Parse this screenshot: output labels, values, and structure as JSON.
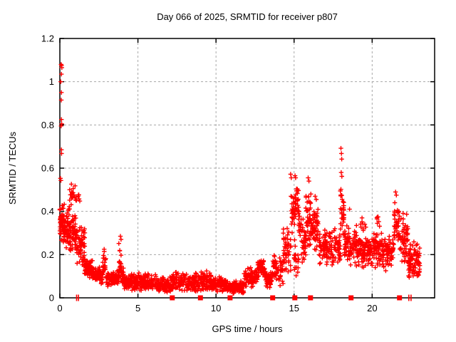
{
  "title": "Day 066 of 2025, SRMTID for receiver p807",
  "x_axis": {
    "label": "GPS time / hours",
    "min": 0,
    "max": 24,
    "tick_values": [
      0,
      5,
      10,
      15,
      20
    ],
    "tick_labels": [
      "0",
      "5",
      "10",
      "15",
      "20"
    ]
  },
  "y_axis": {
    "label": "SRMTID / TECUs",
    "min": 0,
    "max": 1.2,
    "tick_values": [
      0,
      0.2,
      0.4,
      0.6,
      0.8,
      1.0,
      1.2
    ],
    "tick_labels": [
      "0",
      "0.2",
      "0.4",
      "0.6",
      "0.8",
      "1",
      "1.2"
    ]
  },
  "colors": {
    "marker": "#ff0000",
    "grid": "#a8a8a8",
    "axis": "#000000",
    "background": "#ffffff",
    "text": "#000000"
  },
  "chart_data": {
    "type": "scatter",
    "marker_shape": "plus",
    "title": "Day 066 of 2025, SRMTID for receiver p807",
    "xlabel": "GPS time / hours",
    "ylabel": "SRMTID / TECUs",
    "xlim": [
      0,
      24
    ],
    "ylim": [
      0,
      1.2
    ],
    "grid": true,
    "seed": 20250660,
    "segments_format": [
      "t_start_hours",
      "t_end_hours",
      "n_points",
      "y_low_TECUs",
      "y_high_TECUs"
    ],
    "segments": [
      [
        0.0,
        0.3,
        45,
        0.24,
        0.44
      ],
      [
        0.0,
        0.15,
        10,
        0.3,
        0.42
      ],
      [
        0.25,
        0.65,
        50,
        0.22,
        0.42
      ],
      [
        0.6,
        1.3,
        26,
        0.42,
        0.53
      ],
      [
        0.6,
        1.1,
        55,
        0.2,
        0.4
      ],
      [
        1.05,
        1.6,
        60,
        0.14,
        0.34
      ],
      [
        1.55,
        2.1,
        70,
        0.09,
        0.18
      ],
      [
        2.1,
        2.6,
        60,
        0.07,
        0.15
      ],
      [
        2.6,
        2.75,
        15,
        0.06,
        0.13
      ],
      [
        2.75,
        2.95,
        25,
        0.08,
        0.225
      ],
      [
        2.95,
        3.1,
        15,
        0.05,
        0.13
      ],
      [
        3.1,
        3.6,
        50,
        0.045,
        0.125
      ],
      [
        3.6,
        3.75,
        15,
        0.05,
        0.13
      ],
      [
        3.75,
        3.95,
        25,
        0.07,
        0.27
      ],
      [
        3.95,
        4.1,
        15,
        0.05,
        0.15
      ],
      [
        4.1,
        4.6,
        50,
        0.035,
        0.11
      ],
      [
        4.6,
        5.3,
        65,
        0.03,
        0.12
      ],
      [
        5.3,
        6.3,
        90,
        0.025,
        0.115
      ],
      [
        6.3,
        7.1,
        75,
        0.02,
        0.1
      ],
      [
        7.1,
        7.6,
        45,
        0.03,
        0.13
      ],
      [
        7.6,
        8.6,
        90,
        0.03,
        0.12
      ],
      [
        8.6,
        9.7,
        100,
        0.025,
        0.125
      ],
      [
        9.7,
        10.6,
        80,
        0.02,
        0.1
      ],
      [
        10.6,
        11.8,
        115,
        0.015,
        0.085
      ],
      [
        11.8,
        12.4,
        60,
        0.04,
        0.14
      ],
      [
        12.4,
        12.65,
        25,
        0.06,
        0.13
      ],
      [
        12.65,
        12.9,
        30,
        0.09,
        0.175
      ],
      [
        12.9,
        13.05,
        20,
        0.1,
        0.185
      ],
      [
        13.05,
        13.2,
        15,
        0.07,
        0.14
      ],
      [
        13.2,
        13.6,
        40,
        0.04,
        0.12
      ],
      [
        13.6,
        14.3,
        60,
        0.05,
        0.2
      ],
      [
        14.3,
        14.8,
        45,
        0.1,
        0.35
      ],
      [
        14.8,
        15.0,
        20,
        0.28,
        0.5
      ],
      [
        15.0,
        15.3,
        35,
        0.32,
        0.555
      ],
      [
        15.0,
        15.3,
        20,
        0.08,
        0.28
      ],
      [
        15.3,
        15.45,
        15,
        0.22,
        0.42
      ],
      [
        15.45,
        15.75,
        35,
        0.15,
        0.38
      ],
      [
        15.75,
        16.1,
        45,
        0.22,
        0.5
      ],
      [
        16.1,
        16.6,
        50,
        0.18,
        0.44
      ],
      [
        16.6,
        17.6,
        95,
        0.14,
        0.33
      ],
      [
        17.6,
        18.0,
        40,
        0.15,
        0.33
      ],
      [
        17.95,
        18.2,
        30,
        0.28,
        0.52
      ],
      [
        18.2,
        19.0,
        85,
        0.14,
        0.35
      ],
      [
        19.0,
        20.0,
        95,
        0.13,
        0.3
      ],
      [
        19.2,
        19.6,
        8,
        0.3,
        0.375
      ],
      [
        20.0,
        21.0,
        95,
        0.12,
        0.31
      ],
      [
        20.2,
        20.6,
        6,
        0.32,
        0.38
      ],
      [
        21.0,
        21.4,
        40,
        0.14,
        0.3
      ],
      [
        21.4,
        21.75,
        35,
        0.22,
        0.46
      ],
      [
        21.75,
        22.3,
        55,
        0.15,
        0.4
      ],
      [
        22.3,
        23.05,
        85,
        0.08,
        0.26
      ]
    ],
    "outliers_format": [
      "t_hours",
      "y_TECUs"
    ],
    "outliers": [
      [
        0.08,
        1.08
      ],
      [
        0.11,
        1.075
      ],
      [
        0.13,
        1.065
      ],
      [
        0.1,
        1.035
      ],
      [
        0.06,
        1.0
      ],
      [
        0.1,
        0.95
      ],
      [
        0.09,
        0.915
      ],
      [
        0.1,
        0.825
      ],
      [
        0.12,
        0.805
      ],
      [
        0.08,
        0.795
      ],
      [
        0.1,
        0.685
      ],
      [
        0.11,
        0.668
      ],
      [
        0.04,
        0.553
      ],
      [
        0.07,
        0.543
      ],
      [
        0.02,
        0.41
      ],
      [
        0.03,
        0.35
      ],
      [
        2.84,
        0.225
      ],
      [
        3.88,
        0.285
      ],
      [
        3.92,
        0.27
      ],
      [
        14.78,
        0.572
      ],
      [
        14.82,
        0.555
      ],
      [
        15.06,
        0.565
      ],
      [
        15.1,
        0.555
      ],
      [
        15.9,
        0.555
      ],
      [
        15.95,
        0.54
      ],
      [
        16.35,
        0.47
      ],
      [
        16.42,
        0.455
      ],
      [
        18.0,
        0.692
      ],
      [
        18.03,
        0.668
      ],
      [
        18.05,
        0.642
      ],
      [
        18.02,
        0.58
      ],
      [
        18.06,
        0.562
      ],
      [
        18.0,
        0.502
      ],
      [
        18.55,
        0.41
      ],
      [
        19.35,
        0.37
      ],
      [
        21.5,
        0.49
      ],
      [
        21.55,
        0.475
      ],
      [
        21.45,
        0.44
      ],
      [
        20.35,
        0.375
      ]
    ],
    "zero_line_squares_hours": [
      7.2,
      9.0,
      10.9,
      13.63,
      15.05,
      16.05,
      18.65,
      21.75
    ],
    "zero_line_bars_hours": [
      1.07,
      1.19,
      22.35,
      22.49
    ]
  }
}
